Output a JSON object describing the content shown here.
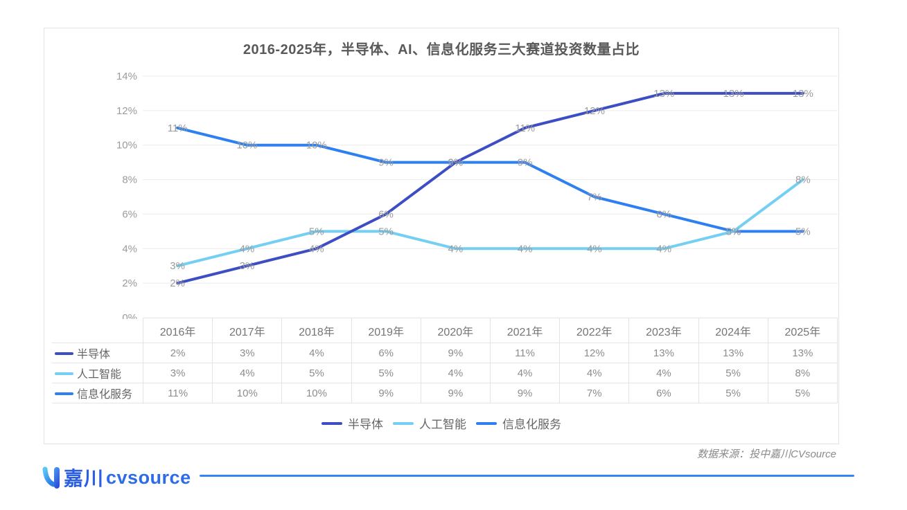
{
  "chart": {
    "title": "2016-2025年，半导体、AI、信息化服务三大赛道投资数量占比"
  },
  "chart_data": {
    "type": "line",
    "categories": [
      "2016年",
      "2017年",
      "2018年",
      "2019年",
      "2020年",
      "2021年",
      "2022年",
      "2023年",
      "2024年",
      "2025年"
    ],
    "series": [
      {
        "key": "semiconductor",
        "name": "半导体",
        "color": "#3d4ec4",
        "values": [
          2,
          3,
          4,
          6,
          9,
          11,
          12,
          13,
          13,
          13
        ]
      },
      {
        "key": "ai",
        "name": "人工智能",
        "color": "#74cff2",
        "values": [
          3,
          4,
          5,
          5,
          4,
          4,
          4,
          4,
          5,
          8
        ]
      },
      {
        "key": "info-services",
        "name": "信息化服务",
        "color": "#2e80f0",
        "values": [
          11,
          10,
          10,
          9,
          9,
          9,
          7,
          6,
          5,
          5
        ]
      }
    ],
    "unit": "%",
    "ylim": [
      0,
      14
    ],
    "ytick_step": 2,
    "grid": true,
    "value_labels": true,
    "legend_position": "bottom",
    "table_below": true,
    "label_color": "#9b9b9b",
    "grid_color": "#ececec"
  },
  "footer": {
    "source_note": "数据来源：投中嘉川CVsource",
    "brand_cn": "嘉川",
    "brand_en": "cvsource",
    "brand_icon": "cvsource-logo-icon",
    "brand_color": "#2b5fe3",
    "line_color": "#3485f2"
  }
}
